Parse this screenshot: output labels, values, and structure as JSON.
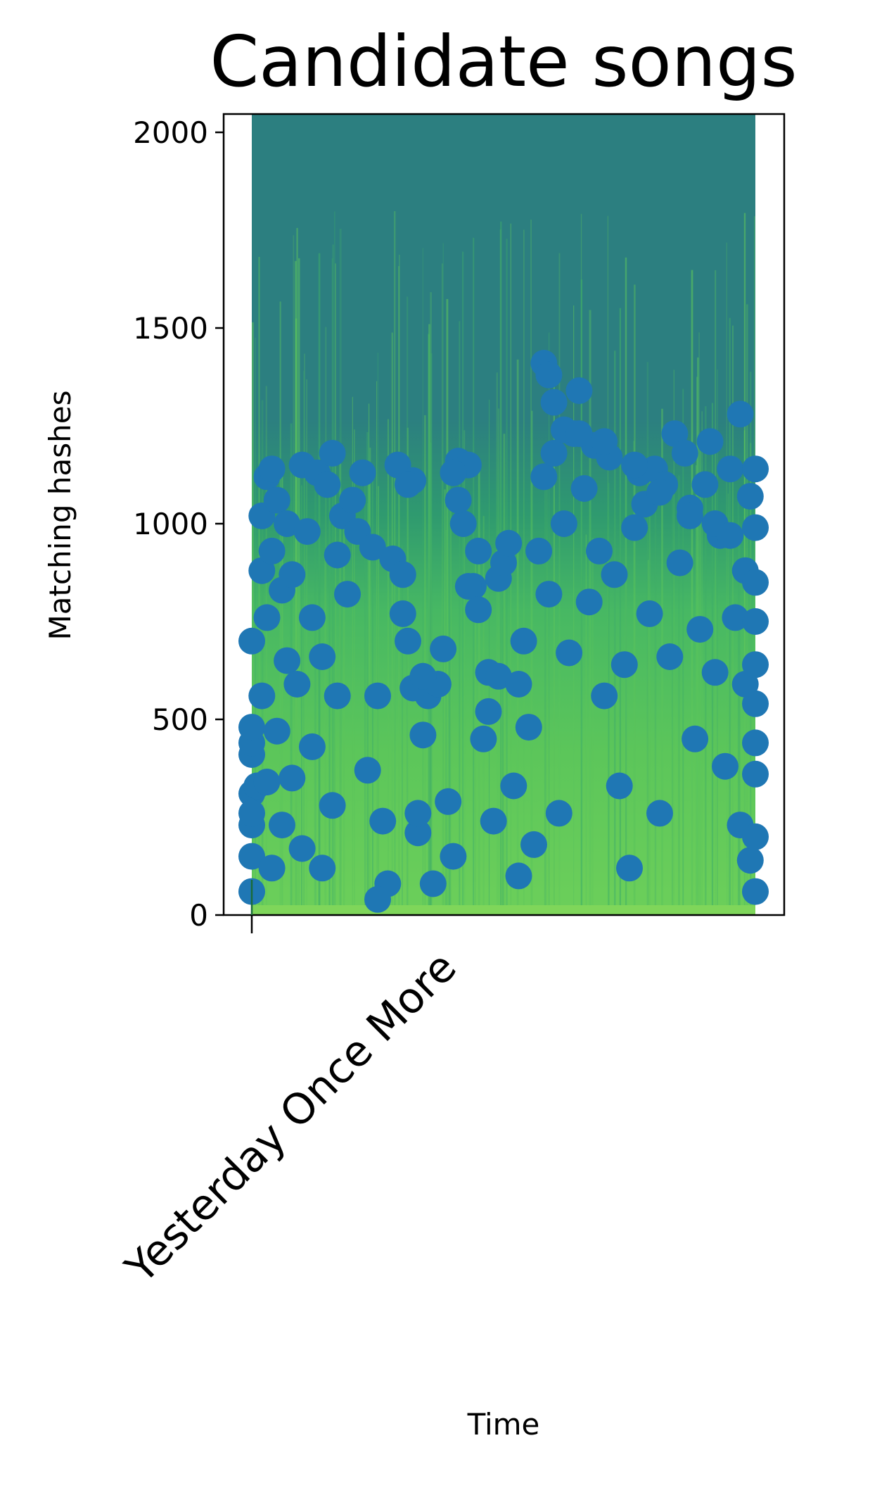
{
  "chart_data": {
    "type": "scatter",
    "title": "Candidate songs",
    "xlabel": "Time",
    "ylabel": "Matching hashes",
    "ylim": [
      0,
      2050
    ],
    "yticks": [
      0,
      500,
      1000,
      1500,
      2000
    ],
    "categories": [
      "Yesterday Once More"
    ],
    "x_range": [
      0,
      1
    ],
    "background": "spectrogram",
    "colors": {
      "points": "#1f77b4",
      "spectrogram_top": "#2c7f7f",
      "spectrogram_bottom": "#5ec85a",
      "tick_marker": "#1a6b3a"
    },
    "marker_size": "large",
    "series": [
      {
        "name": "",
        "x": [
          0.0,
          0.0,
          0.0,
          0.0,
          0.0,
          0.0,
          0.0,
          0.0,
          0.0,
          0.01,
          0.02,
          0.02,
          0.02,
          0.03,
          0.03,
          0.03,
          0.04,
          0.04,
          0.04,
          0.05,
          0.05,
          0.06,
          0.06,
          0.07,
          0.07,
          0.08,
          0.08,
          0.09,
          0.1,
          0.1,
          0.11,
          0.12,
          0.12,
          0.13,
          0.14,
          0.14,
          0.15,
          0.16,
          0.16,
          0.17,
          0.17,
          0.18,
          0.19,
          0.2,
          0.21,
          0.22,
          0.23,
          0.24,
          0.25,
          0.26,
          0.27,
          0.28,
          0.29,
          0.3,
          0.3,
          0.31,
          0.32,
          0.33,
          0.34,
          0.35,
          0.36,
          0.37,
          0.38,
          0.39,
          0.4,
          0.41,
          0.42,
          0.43,
          0.44,
          0.45,
          0.46,
          0.47,
          0.48,
          0.49,
          0.5,
          0.51,
          0.52,
          0.53,
          0.54,
          0.55,
          0.56,
          0.57,
          0.58,
          0.59,
          0.6,
          0.61,
          0.62,
          0.63,
          0.64,
          0.65,
          0.66,
          0.67,
          0.68,
          0.69,
          0.7,
          0.71,
          0.72,
          0.73,
          0.74,
          0.75,
          0.76,
          0.77,
          0.78,
          0.79,
          0.8,
          0.81,
          0.82,
          0.83,
          0.84,
          0.85,
          0.86,
          0.87,
          0.88,
          0.89,
          0.9,
          0.91,
          0.92,
          0.93,
          0.94,
          0.95,
          0.96,
          0.97,
          0.97,
          0.98,
          0.98,
          0.99,
          0.99,
          1.0,
          1.0,
          1.0,
          1.0,
          1.0,
          1.0,
          1.0,
          1.0,
          1.0,
          1.0,
          0.25,
          0.31,
          0.32,
          0.33,
          0.34,
          0.58,
          0.59,
          0.6,
          0.62,
          0.65,
          0.7,
          0.76,
          0.81,
          0.87,
          0.92,
          0.95,
          0.4,
          0.41,
          0.43,
          0.45,
          0.47,
          0.49,
          0.53
        ],
        "y": [
          60,
          150,
          230,
          310,
          410,
          440,
          480,
          260,
          700,
          330,
          1020,
          880,
          560,
          1120,
          760,
          340,
          1140,
          930,
          120,
          1060,
          470,
          830,
          230,
          650,
          1000,
          870,
          350,
          590,
          1150,
          170,
          980,
          430,
          760,
          1130,
          120,
          660,
          1100,
          1180,
          280,
          920,
          560,
          1020,
          820,
          1060,
          980,
          1130,
          370,
          940,
          560,
          240,
          80,
          910,
          1150,
          870,
          770,
          700,
          1110,
          210,
          460,
          560,
          80,
          590,
          680,
          290,
          150,
          1160,
          1000,
          1150,
          840,
          930,
          450,
          620,
          240,
          860,
          900,
          950,
          330,
          100,
          700,
          480,
          180,
          930,
          1120,
          820,
          1180,
          260,
          1000,
          670,
          1230,
          1340,
          1090,
          800,
          1200,
          930,
          560,
          1170,
          870,
          330,
          640,
          120,
          990,
          1130,
          1050,
          770,
          1140,
          260,
          1100,
          660,
          1230,
          900,
          1180,
          1040,
          450,
          730,
          1100,
          1210,
          620,
          970,
          380,
          1140,
          760,
          230,
          1280,
          880,
          590,
          140,
          1070,
          990,
          850,
          750,
          440,
          360,
          200,
          60,
          1140,
          640,
          540,
          40,
          1100,
          580,
          260,
          610,
          1410,
          1380,
          1310,
          1240,
          1230,
          1210,
          1150,
          1080,
          1020,
          1000,
          970,
          1130,
          1060,
          840,
          780,
          520,
          610,
          590
        ]
      }
    ]
  }
}
